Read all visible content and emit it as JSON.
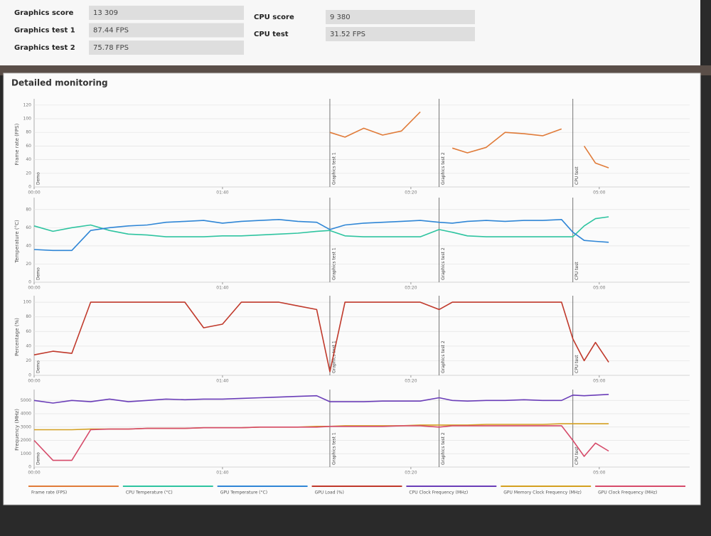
{
  "header": {
    "gpu_rows": [
      {
        "label": "Graphics score",
        "value": "13 309"
      },
      {
        "label": "Graphics test 1",
        "value": "87.44 FPS"
      },
      {
        "label": "Graphics test 2",
        "value": "75.78 FPS"
      }
    ],
    "cpu_rows": [
      {
        "label": "CPU score",
        "value": "9 380"
      },
      {
        "label": "CPU test",
        "value": "31.52 FPS"
      }
    ]
  },
  "panel_title": "Detailed monitoring",
  "phases": [
    {
      "label": "Demo",
      "x": 0
    },
    {
      "label": "Graphics test 1",
      "x": 157
    },
    {
      "label": "Graphics test 2",
      "x": 215
    },
    {
      "label": "CPU test",
      "x": 286
    }
  ],
  "chart_data": [
    {
      "type": "line",
      "y_label": "Frame rate (FPS)",
      "x": [
        0,
        10,
        20,
        30,
        40,
        50,
        60,
        70,
        80,
        90,
        100,
        110,
        120,
        130,
        140,
        150,
        157,
        165,
        175,
        185,
        195,
        205,
        215,
        222,
        230,
        240,
        250,
        260,
        270,
        280,
        286,
        292,
        298,
        305
      ],
      "xlim": [
        0,
        348
      ],
      "xticks": [
        {
          "value": 0,
          "label": "00:00"
        },
        {
          "value": 100,
          "label": "01:40"
        },
        {
          "value": 200,
          "label": "03:20"
        },
        {
          "value": 300,
          "label": "05:00"
        }
      ],
      "ylim": [
        0,
        125
      ],
      "yticks": [
        0,
        20,
        40,
        60,
        80,
        100,
        120
      ],
      "grid": true,
      "series": [
        {
          "name": "Frame rate (FPS)",
          "color": "#e07b39",
          "values": [
            null,
            null,
            null,
            null,
            null,
            null,
            null,
            null,
            null,
            null,
            null,
            null,
            null,
            null,
            null,
            null,
            80,
            73,
            86,
            76,
            82,
            110,
            null,
            57,
            50,
            58,
            80,
            78,
            75,
            85,
            null,
            60,
            35,
            28
          ]
        }
      ]
    },
    {
      "type": "line",
      "y_label": "Temperature (°C)",
      "x": [
        0,
        10,
        20,
        30,
        40,
        50,
        60,
        70,
        80,
        90,
        100,
        110,
        120,
        130,
        140,
        150,
        157,
        165,
        175,
        185,
        195,
        205,
        215,
        222,
        230,
        240,
        250,
        260,
        270,
        280,
        286,
        292,
        298,
        305
      ],
      "xlim": [
        0,
        348
      ],
      "xticks": [
        {
          "value": 0,
          "label": "00:00"
        },
        {
          "value": 100,
          "label": "01:40"
        },
        {
          "value": 200,
          "label": "03:20"
        },
        {
          "value": 300,
          "label": "05:00"
        }
      ],
      "ylim": [
        0,
        90
      ],
      "yticks": [
        0,
        20,
        40,
        60,
        80
      ],
      "grid": true,
      "series": [
        {
          "name": "CPU Temperature (°C)",
          "color": "#2ec4a0",
          "values": [
            62,
            56,
            60,
            63,
            57,
            53,
            52,
            50,
            50,
            50,
            51,
            51,
            52,
            53,
            54,
            56,
            57,
            51,
            50,
            50,
            50,
            50,
            58,
            55,
            51,
            50,
            50,
            50,
            50,
            50,
            50,
            62,
            70,
            72
          ]
        },
        {
          "name": "GPU Temperature (°C)",
          "color": "#2f86d6",
          "values": [
            36,
            35,
            35,
            57,
            60,
            62,
            63,
            66,
            67,
            68,
            65,
            67,
            68,
            69,
            67,
            66,
            58,
            63,
            65,
            66,
            67,
            68,
            66,
            65,
            67,
            68,
            67,
            68,
            68,
            69,
            55,
            46,
            45,
            44
          ]
        }
      ]
    },
    {
      "type": "line",
      "y_label": "Percentage (%)",
      "x": [
        0,
        10,
        20,
        30,
        40,
        50,
        60,
        70,
        80,
        90,
        100,
        110,
        120,
        130,
        140,
        150,
        157,
        165,
        175,
        185,
        195,
        205,
        215,
        222,
        230,
        240,
        250,
        260,
        270,
        280,
        286,
        292,
        298,
        305
      ],
      "xlim": [
        0,
        348
      ],
      "xticks": [
        {
          "value": 0,
          "label": "00:00"
        },
        {
          "value": 100,
          "label": "01:40"
        },
        {
          "value": 200,
          "label": "03:20"
        },
        {
          "value": 300,
          "label": "05:00"
        }
      ],
      "ylim": [
        0,
        105
      ],
      "yticks": [
        0,
        20,
        40,
        60,
        80,
        100
      ],
      "grid": true,
      "series": [
        {
          "name": "GPU Load (%)",
          "color": "#c0392b",
          "values": [
            28,
            33,
            30,
            100,
            100,
            100,
            100,
            100,
            100,
            65,
            70,
            100,
            100,
            100,
            95,
            90,
            5,
            100,
            100,
            100,
            100,
            100,
            90,
            100,
            100,
            100,
            100,
            100,
            100,
            100,
            50,
            20,
            45,
            18
          ]
        }
      ]
    },
    {
      "type": "line",
      "y_label": "Frequency (MHz)",
      "x": [
        0,
        10,
        20,
        30,
        40,
        50,
        60,
        70,
        80,
        90,
        100,
        110,
        120,
        130,
        140,
        150,
        157,
        165,
        175,
        185,
        195,
        205,
        215,
        222,
        230,
        240,
        250,
        260,
        270,
        280,
        286,
        292,
        298,
        305
      ],
      "xlim": [
        0,
        348
      ],
      "xticks": [
        {
          "value": 0,
          "label": "00:00"
        },
        {
          "value": 100,
          "label": "01:40"
        },
        {
          "value": 200,
          "label": "03:20"
        },
        {
          "value": 300,
          "label": "05:00"
        }
      ],
      "ylim": [
        0,
        5600
      ],
      "yticks": [
        0,
        1000,
        2000,
        3000,
        4000,
        5000
      ],
      "grid": true,
      "series": [
        {
          "name": "CPU Clock Frequency (MHz)",
          "color": "#6a3db8",
          "values": [
            5000,
            4800,
            5000,
            4900,
            5100,
            4900,
            5000,
            5100,
            5050,
            5100,
            5100,
            5150,
            5200,
            5250,
            5300,
            5350,
            4900,
            4900,
            4900,
            4950,
            4950,
            4950,
            5200,
            5000,
            4950,
            5000,
            5000,
            5050,
            5000,
            5000,
            5400,
            5350,
            5400,
            5450
          ]
        },
        {
          "name": "GPU Memory Clock Frequency (MHz)",
          "color": "#d4a020",
          "values": [
            2800,
            2800,
            2800,
            2850,
            2850,
            2850,
            2900,
            2900,
            2900,
            2950,
            2950,
            2950,
            3000,
            3000,
            3000,
            3050,
            3050,
            3100,
            3100,
            3100,
            3100,
            3150,
            3150,
            3150,
            3150,
            3200,
            3200,
            3200,
            3200,
            3250,
            3250,
            3250,
            3250,
            3250
          ]
        },
        {
          "name": "GPU Clock Frequency (MHz)",
          "color": "#d64b6a",
          "values": [
            2000,
            500,
            500,
            2800,
            2850,
            2850,
            2900,
            2900,
            2900,
            2950,
            2950,
            2950,
            3000,
            3000,
            3000,
            3000,
            3050,
            3050,
            3050,
            3050,
            3100,
            3100,
            3000,
            3100,
            3100,
            3100,
            3100,
            3100,
            3100,
            3100,
            2000,
            800,
            1800,
            1200
          ]
        }
      ]
    }
  ]
}
